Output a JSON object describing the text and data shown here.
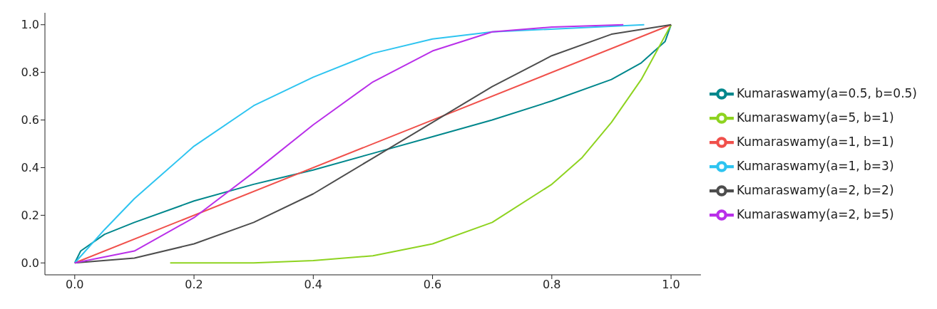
{
  "chart_data": {
    "type": "line",
    "xlim": [
      -0.05,
      1.05
    ],
    "ylim": [
      -0.05,
      1.05
    ],
    "xticks": [
      {
        "value": 0,
        "label": "0.0"
      },
      {
        "value": 0.2,
        "label": "0.2"
      },
      {
        "value": 0.4,
        "label": "0.4"
      },
      {
        "value": 0.6,
        "label": "0.6"
      },
      {
        "value": 0.8,
        "label": "0.8"
      },
      {
        "value": 1,
        "label": "1.0"
      }
    ],
    "yticks": [
      {
        "value": 0,
        "label": "0.0"
      },
      {
        "value": 0.2,
        "label": "0.2"
      },
      {
        "value": 0.4,
        "label": "0.4"
      },
      {
        "value": 0.6,
        "label": "0.6"
      },
      {
        "value": 0.8,
        "label": "0.8"
      },
      {
        "value": 1,
        "label": "1.0"
      }
    ],
    "grid": false,
    "legend": "right",
    "marker": "none",
    "line_style": "solid",
    "series": [
      {
        "name": "Kumaraswamy(a=0.5, b=0.5)",
        "color": "#00878c",
        "x": [
          0,
          0.01,
          0.05,
          0.1,
          0.2,
          0.3,
          0.4,
          0.5,
          0.6,
          0.7,
          0.8,
          0.9,
          0.95,
          0.99,
          1
        ],
        "values": [
          0,
          0.05,
          0.12,
          0.17,
          0.26,
          0.33,
          0.39,
          0.46,
          0.53,
          0.6,
          0.68,
          0.77,
          0.84,
          0.93,
          1
        ]
      },
      {
        "name": "Kumaraswamy(a=5, b=1)",
        "color": "#8ed320",
        "x": [
          0.16,
          0.3,
          0.4,
          0.5,
          0.6,
          0.7,
          0.8,
          0.85,
          0.9,
          0.95,
          1
        ],
        "values": [
          0,
          0,
          0.01,
          0.03,
          0.08,
          0.17,
          0.33,
          0.44,
          0.59,
          0.77,
          1
        ]
      },
      {
        "name": "Kumaraswamy(a=1, b=1)",
        "color": "#f0504b",
        "x": [
          0,
          1
        ],
        "values": [
          0,
          1
        ]
      },
      {
        "name": "Kumaraswamy(a=1, b=3)",
        "color": "#2ec4f0",
        "x": [
          0,
          0.05,
          0.1,
          0.2,
          0.3,
          0.4,
          0.5,
          0.6,
          0.7,
          0.955
        ],
        "values": [
          0,
          0.14,
          0.27,
          0.49,
          0.66,
          0.78,
          0.88,
          0.94,
          0.97,
          1
        ]
      },
      {
        "name": "Kumaraswamy(a=2, b=2)",
        "color": "#4d4d4d",
        "x": [
          0,
          0.1,
          0.2,
          0.3,
          0.4,
          0.5,
          0.6,
          0.7,
          0.8,
          0.9,
          1
        ],
        "values": [
          0,
          0.02,
          0.08,
          0.17,
          0.29,
          0.44,
          0.59,
          0.74,
          0.87,
          0.96,
          1
        ]
      },
      {
        "name": "Kumaraswamy(a=2, b=5)",
        "color": "#b92fe9",
        "x": [
          0,
          0.1,
          0.2,
          0.3,
          0.4,
          0.5,
          0.6,
          0.7,
          0.8,
          0.92
        ],
        "values": [
          0,
          0.05,
          0.19,
          0.38,
          0.58,
          0.76,
          0.89,
          0.97,
          0.99,
          1
        ]
      }
    ]
  }
}
